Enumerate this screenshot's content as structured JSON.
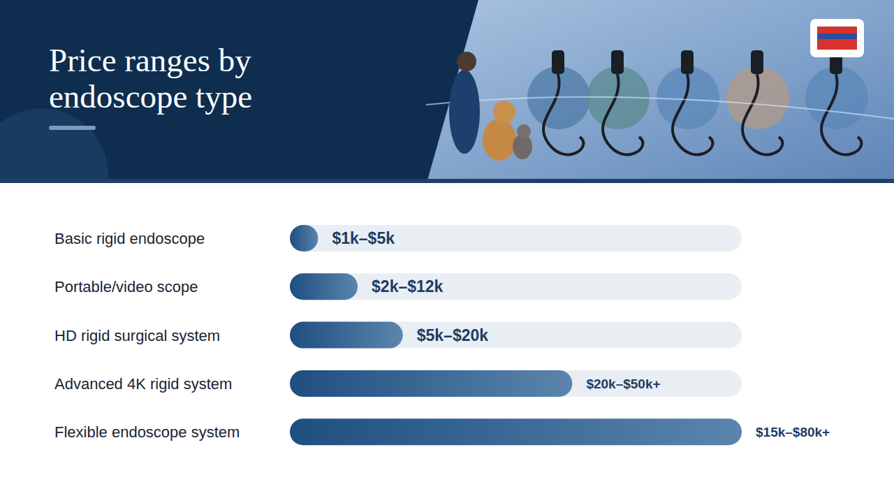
{
  "chart_data": {
    "type": "bar",
    "title": "Price ranges by endoscope type",
    "orientation": "horizontal",
    "categories": [
      "Basic rigid endoscope",
      "Portable/video scope",
      "HD rigid surgical system",
      "Advanced 4K rigid system",
      "Flexible endoscope system"
    ],
    "values": [
      5000,
      12000,
      20000,
      50000,
      80000
    ],
    "value_labels": [
      "$1k–$5k",
      "$2k–$12k",
      "$5k–$20k",
      "$20k–$50k+",
      "$15k–$80k+"
    ],
    "color": "#1f4e80",
    "xlim": [
      0,
      80000
    ],
    "data_labels": true,
    "tick_labels": false,
    "grid": false
  }
}
